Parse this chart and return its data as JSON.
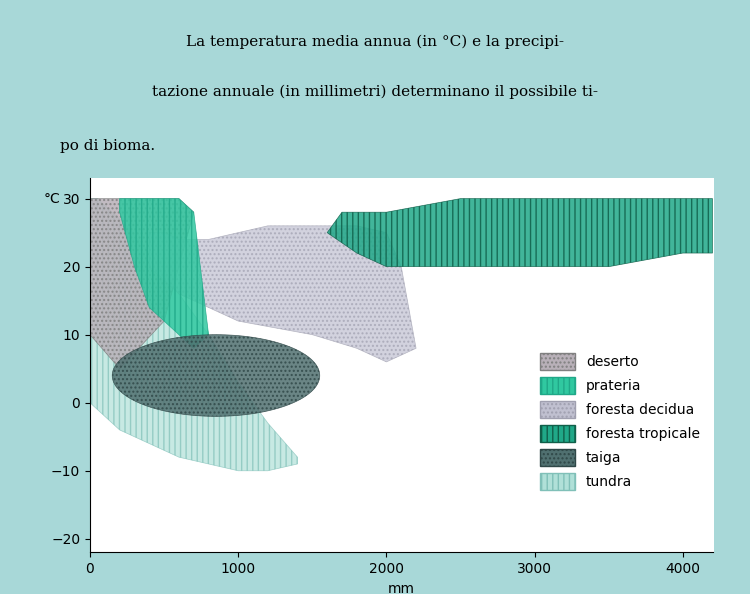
{
  "title_line1": "La temperatura media annua (in °C) e la precipi-",
  "title_line2": "tazione annuale (in millimetri) determinano il possibile ti-",
  "title_line3": "po di bioma.",
  "xlabel": "mm",
  "ylabel": "°C",
  "xlim": [
    0,
    4200
  ],
  "ylim": [
    -22,
    33
  ],
  "xticks": [
    0,
    1000,
    2000,
    3000,
    4000
  ],
  "yticks": [
    -20,
    -10,
    0,
    10,
    20,
    30
  ],
  "bg_color": "#a8d8d8",
  "plot_bg": "#ffffff",
  "legend": [
    {
      "label": "deserto",
      "color": "#b0a8b0",
      "hatch": "...."
    },
    {
      "label": "prateria",
      "color": "#40d0b0",
      "hatch": "|||"
    },
    {
      "label": "foresta decidua",
      "color": "#c8c8d8",
      "hatch": "...."
    },
    {
      "label": "foresta tropicale",
      "color": "#208878",
      "hatch": "|||"
    },
    {
      "label": "taiga",
      "color": "#507878",
      "hatch": "...."
    },
    {
      "label": "tundra",
      "color": "#b8e8e0",
      "hatch": "|||"
    }
  ],
  "biomes": {
    "deserto": {
      "color": "#b8b0b8",
      "alpha": 0.85,
      "hatch": "...."
    },
    "prateria": {
      "color": "#30c8a0",
      "alpha": 0.85,
      "hatch": "|||"
    },
    "foresta_decidua": {
      "color": "#c0c0d0",
      "alpha": 0.7,
      "hatch": "...."
    },
    "foresta_tropicale": {
      "color": "#20a888",
      "alpha": 0.85,
      "hatch": "|||"
    },
    "taiga": {
      "color": "#507070",
      "alpha": 0.85,
      "hatch": "...."
    },
    "tundra": {
      "color": "#b0e0d8",
      "alpha": 0.7,
      "hatch": "|||"
    }
  }
}
